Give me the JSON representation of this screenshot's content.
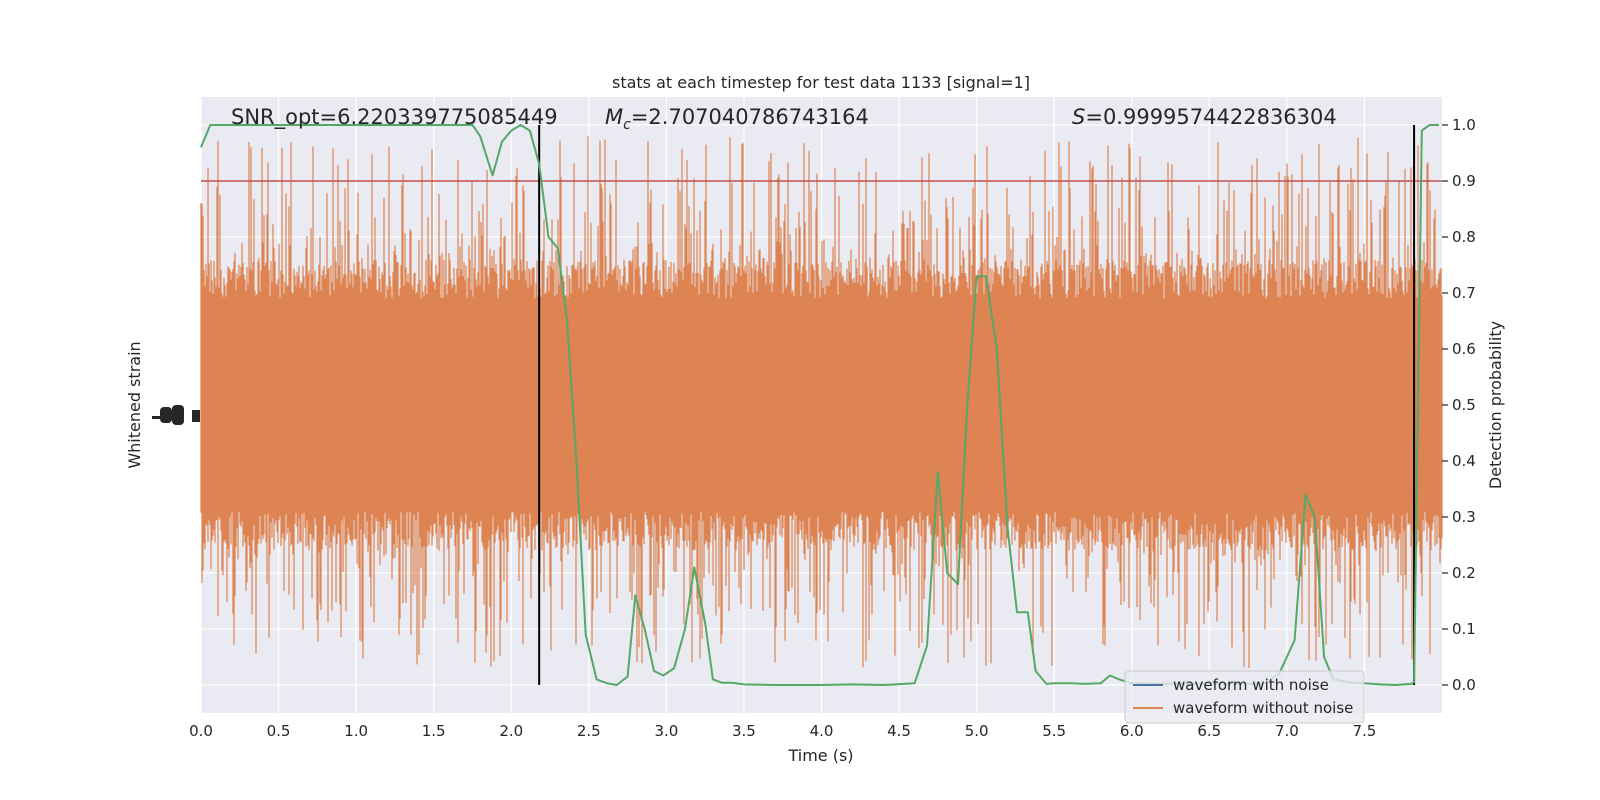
{
  "chart_data": {
    "type": "line",
    "title": "stats at each timestep for test data 1133 [signal=1]",
    "xlabel": "Time (s)",
    "ylabel_left": "Whitened strain",
    "ylabel_right": "Detection probability",
    "xlim": [
      0,
      8
    ],
    "ylim_right": [
      -0.05,
      1.05
    ],
    "x_ticks": [
      "0.0",
      "0.5",
      "1.0",
      "1.5",
      "2.0",
      "2.5",
      "3.0",
      "3.5",
      "4.0",
      "4.5",
      "5.0",
      "5.5",
      "6.0",
      "6.5",
      "7.0",
      "7.5"
    ],
    "y_ticks_right": [
      "0.0",
      "0.1",
      "0.2",
      "0.3",
      "0.4",
      "0.5",
      "0.6",
      "0.7",
      "0.8",
      "0.9",
      "1.0"
    ],
    "annotations": {
      "snr": "SNR_opt=6.220339775085449",
      "mc_symbol": "M",
      "mc_sub": "c",
      "mc_value": "=2.707040786743164",
      "s_symbol": "S",
      "s_value": "=0.9999574422836304"
    },
    "threshold": 0.9,
    "vertical_lines_x": [
      2.18,
      7.82
    ],
    "grid": true,
    "legend_position": "lower-right",
    "series": [
      {
        "name": "waveform with noise",
        "color": "#4c72b0",
        "kind": "strain"
      },
      {
        "name": "waveform without noise",
        "color": "#dd8452",
        "kind": "strain",
        "band_probability_units": {
          "dense_low": 0.31,
          "dense_high": 0.69,
          "spike_low_min": 0.03,
          "spike_high_max": 0.98
        }
      },
      {
        "name": "detection probability",
        "color": "#55a868",
        "kind": "probability",
        "x": [
          0.0,
          0.06,
          0.5,
          1.0,
          1.5,
          1.75,
          1.8,
          1.88,
          1.94,
          2.0,
          2.06,
          2.12,
          2.18,
          2.24,
          2.3,
          2.36,
          2.42,
          2.48,
          2.55,
          2.62,
          2.68,
          2.75,
          2.8,
          2.86,
          2.92,
          2.98,
          3.05,
          3.12,
          3.18,
          3.25,
          3.3,
          3.36,
          3.42,
          3.5,
          3.7,
          4.0,
          4.2,
          4.4,
          4.6,
          4.68,
          4.75,
          4.81,
          4.88,
          4.94,
          5.0,
          5.06,
          5.13,
          5.2,
          5.26,
          5.33,
          5.38,
          5.45,
          5.5,
          5.6,
          5.7,
          5.8,
          5.86,
          5.92,
          6.0,
          6.3,
          6.6,
          6.85,
          6.95,
          7.05,
          7.12,
          7.18,
          7.24,
          7.3,
          7.4,
          7.6,
          7.7,
          7.8,
          7.82,
          7.87,
          7.92,
          7.98
        ],
        "y": [
          0.96,
          1.0,
          1.0,
          1.0,
          1.0,
          1.0,
          0.98,
          0.91,
          0.97,
          0.99,
          1.0,
          0.99,
          0.93,
          0.8,
          0.78,
          0.65,
          0.4,
          0.09,
          0.01,
          0.003,
          0.0,
          0.015,
          0.16,
          0.1,
          0.025,
          0.017,
          0.03,
          0.1,
          0.21,
          0.11,
          0.01,
          0.004,
          0.004,
          0.001,
          0.0,
          0.0,
          0.001,
          0.0,
          0.003,
          0.07,
          0.38,
          0.2,
          0.18,
          0.5,
          0.73,
          0.73,
          0.6,
          0.28,
          0.13,
          0.13,
          0.025,
          0.002,
          0.003,
          0.003,
          0.002,
          0.003,
          0.017,
          0.01,
          0.003,
          0.002,
          0.002,
          0.002,
          0.02,
          0.08,
          0.34,
          0.3,
          0.05,
          0.01,
          0.005,
          0.001,
          0.0,
          0.002,
          0.005,
          0.99,
          1.0,
          1.0
        ]
      }
    ]
  }
}
